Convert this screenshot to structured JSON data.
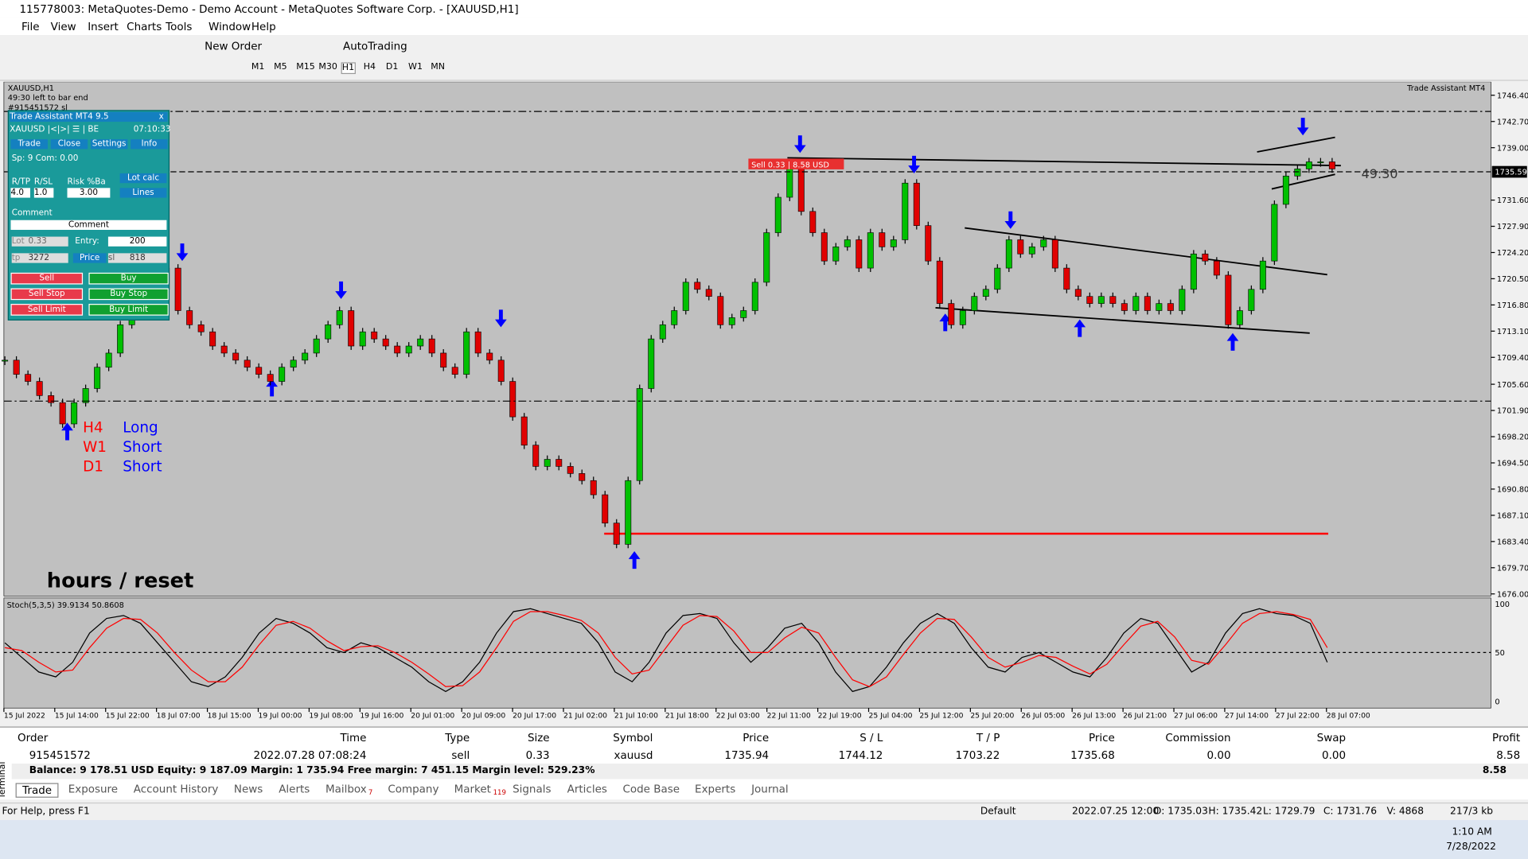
{
  "window": {
    "title": "115778003: MetaQuotes-Demo - Demo Account - MetaQuotes Software Corp. - [XAUUSD,H1]",
    "menu": [
      "File",
      "View",
      "Insert",
      "Charts",
      "Tools",
      "Window",
      "Help"
    ],
    "toolbar": [
      "New Order",
      "AutoTrading"
    ],
    "timeframes": [
      "M1",
      "M5",
      "M15",
      "M30",
      "H1",
      "H4",
      "D1",
      "W1",
      "MN"
    ]
  },
  "chart": {
    "symbol": "XAUUSD,H1",
    "timer": "49:30 left to bar end",
    "order_note": "#915451572 sl",
    "ea_name": "Trade Assistant MT4",
    "countdown": "49:30",
    "sell_label": "Sell 0.33 | 8.58 USD",
    "current_price": 1735.59,
    "ylim": [
      1675.7,
      1748.3
    ],
    "price_ticks": [
      {
        "value": 1746.4,
        "label": "1746.40"
      },
      {
        "value": 1742.7,
        "label": "1742.70"
      },
      {
        "value": 1739.0,
        "label": "1739.00"
      },
      {
        "value": 1731.6,
        "label": "1731.60"
      },
      {
        "value": 1727.9,
        "label": "1727.90"
      },
      {
        "value": 1724.2,
        "label": "1724.20"
      },
      {
        "value": 1720.5,
        "label": "1720.50"
      },
      {
        "value": 1716.8,
        "label": "1716.80"
      },
      {
        "value": 1713.1,
        "label": "1713.10"
      },
      {
        "value": 1709.4,
        "label": "1709.40"
      },
      {
        "value": 1705.6,
        "label": "1705.60"
      },
      {
        "value": 1701.9,
        "label": "1701.90"
      },
      {
        "value": 1698.2,
        "label": "1698.20"
      },
      {
        "value": 1694.5,
        "label": "1694.50"
      },
      {
        "value": 1690.8,
        "label": "1690.80"
      },
      {
        "value": 1687.1,
        "label": "1687.10"
      },
      {
        "value": 1683.4,
        "label": "1683.40"
      },
      {
        "value": 1679.7,
        "label": "1679.70"
      },
      {
        "value": 1676.0,
        "label": "1676.00"
      }
    ],
    "time_ticks": [
      "15 Jul 2022",
      "15 Jul 14:00",
      "15 Jul 22:00",
      "18 Jul 07:00",
      "18 Jul 15:00",
      "19 Jul 00:00",
      "19 Jul 08:00",
      "19 Jul 16:00",
      "20 Jul 01:00",
      "20 Jul 09:00",
      "20 Jul 17:00",
      "21 Jul 02:00",
      "21 Jul 10:00",
      "21 Jul 18:00",
      "22 Jul 03:00",
      "22 Jul 11:00",
      "22 Jul 19:00",
      "25 Jul 04:00",
      "25 Jul 12:00",
      "25 Jul 20:00",
      "26 Jul 05:00",
      "26 Jul 13:00",
      "26 Jul 21:00",
      "27 Jul 06:00",
      "27 Jul 14:00",
      "27 Jul 22:00",
      "28 Jul 07:00"
    ],
    "closes": [
      1709,
      1707,
      1706,
      1704,
      1703,
      1700,
      1703,
      1705,
      1708,
      1710,
      1714,
      1716,
      1717,
      1719,
      1722,
      1716,
      1714,
      1713,
      1711,
      1710,
      1709,
      1708,
      1707,
      1706,
      1708,
      1709,
      1710,
      1712,
      1714,
      1716,
      1711,
      1713,
      1712,
      1711,
      1710,
      1711,
      1712,
      1710,
      1708,
      1707,
      1713,
      1710,
      1709,
      1706,
      1701,
      1697,
      1694,
      1695,
      1694,
      1693,
      1692,
      1690,
      1686,
      1683,
      1692,
      1705,
      1712,
      1714,
      1716,
      1720,
      1719,
      1718,
      1714,
      1715,
      1716,
      1720,
      1727,
      1732,
      1736,
      1730,
      1727,
      1723,
      1725,
      1726,
      1722,
      1727,
      1725,
      1726,
      1734,
      1728,
      1723,
      1717,
      1714,
      1716,
      1718,
      1719,
      1722,
      1726,
      1724,
      1725,
      1726,
      1722,
      1719,
      1718,
      1717,
      1718,
      1717,
      1716,
      1718,
      1716,
      1717,
      1716,
      1719,
      1724,
      1723,
      1721,
      1714,
      1716,
      1719,
      1723,
      1731,
      1735,
      1736,
      1737,
      1737,
      1736
    ],
    "annotations": [
      {
        "tf": "H4",
        "dir": "Long"
      },
      {
        "tf": "W1",
        "dir": "Short"
      },
      {
        "tf": "D1",
        "dir": "Short"
      }
    ],
    "reset_label": "hours / reset",
    "stoch": {
      "label": "Stoch(5,3,5) 39.9134 50.8608",
      "ylim": [
        0,
        100
      ],
      "ticks": [
        100,
        50,
        0
      ],
      "main": [
        60,
        45,
        30,
        25,
        40,
        70,
        85,
        88,
        80,
        60,
        40,
        20,
        15,
        25,
        45,
        70,
        85,
        80,
        70,
        55,
        50,
        60,
        55,
        45,
        35,
        20,
        10,
        20,
        40,
        70,
        92,
        95,
        90,
        85,
        80,
        60,
        30,
        20,
        40,
        70,
        88,
        90,
        85,
        60,
        40,
        55,
        75,
        80,
        60,
        30,
        10,
        15,
        35,
        60,
        80,
        90,
        80,
        55,
        35,
        30,
        45,
        50,
        40,
        30,
        25,
        45,
        70,
        85,
        80,
        55,
        30,
        40,
        70,
        90,
        95,
        90,
        88,
        80,
        40
      ],
      "signal": [
        55,
        52,
        40,
        30,
        32,
        55,
        75,
        85,
        84,
        70,
        50,
        32,
        20,
        20,
        35,
        58,
        78,
        82,
        75,
        62,
        52,
        56,
        57,
        50,
        40,
        28,
        15,
        16,
        30,
        55,
        82,
        92,
        92,
        88,
        83,
        70,
        45,
        28,
        32,
        55,
        78,
        88,
        87,
        72,
        50,
        50,
        65,
        76,
        70,
        45,
        22,
        15,
        25,
        48,
        70,
        85,
        84,
        66,
        45,
        35,
        40,
        47,
        45,
        36,
        28,
        38,
        58,
        77,
        82,
        66,
        42,
        38,
        58,
        80,
        90,
        92,
        89,
        84,
        55
      ]
    }
  },
  "panel": {
    "title": "Trade Assistant MT4 9.5",
    "close": "x",
    "sym": "XAUUSD |<|>| ☰ | BE",
    "clock": "07:10:33",
    "tabs": [
      "Trade",
      "Close",
      "Settings",
      "Info"
    ],
    "spread": "Sp: 9  Com: 0.00",
    "rtp": "R/TP",
    "rsl": "R/SL",
    "risk": "Risk %Ba",
    "lotcalc": "Lot calc",
    "rtp_v": "4.0",
    "rsl_v": "1.0",
    "risk_v": "3.00",
    "lines": "Lines",
    "comment": "Comment",
    "comment_box": "Comment",
    "lot": "Lot",
    "lot_v": "0.33",
    "entry": "Entry:",
    "entry_v": "200",
    "tp": "tp",
    "tp_v": "3272",
    "price": "Price",
    "sl": "sl",
    "sl_v": "818",
    "buttons": [
      "Sell",
      "Buy",
      "Sell Stop",
      "Buy Stop",
      "Sell Limit",
      "Buy Limit"
    ]
  },
  "terminal": {
    "side": "Terminal",
    "columns": [
      "Order",
      "Time",
      "Type",
      "Size",
      "Symbol",
      "Price",
      "S / L",
      "T / P",
      "Price",
      "Commission",
      "Swap",
      "Profit"
    ],
    "row": [
      "915451572",
      "2022.07.28 07:08:24",
      "sell",
      "0.33",
      "xauusd",
      "1735.94",
      "1744.12",
      "1703.22",
      "1735.68",
      "0.00",
      "0.00",
      "8.58"
    ],
    "balance": "Balance: 9 178.51 USD  Equity: 9 187.09  Margin: 1 735.94  Free margin: 7 451.15  Margin level: 529.23%",
    "total": "8.58",
    "tabs": [
      {
        "name": "Trade"
      },
      {
        "name": "Exposure"
      },
      {
        "name": "Account History"
      },
      {
        "name": "News"
      },
      {
        "name": "Alerts"
      },
      {
        "name": "Mailbox",
        "badge": "7"
      },
      {
        "name": "Company"
      },
      {
        "name": "Market",
        "badge": "119"
      },
      {
        "name": "Signals"
      },
      {
        "name": "Articles"
      },
      {
        "name": "Code Base"
      },
      {
        "name": "Experts"
      },
      {
        "name": "Journal"
      }
    ]
  },
  "status": [
    "For Help, press F1",
    "Default",
    "2022.07.25 12:00",
    "O: 1735.03",
    "H: 1735.42",
    "L: 1729.79",
    "C: 1731.76",
    "V: 4868",
    "217/3 kb"
  ],
  "taskbar": {
    "time": "1:10 AM",
    "date": "7/28/2022"
  }
}
